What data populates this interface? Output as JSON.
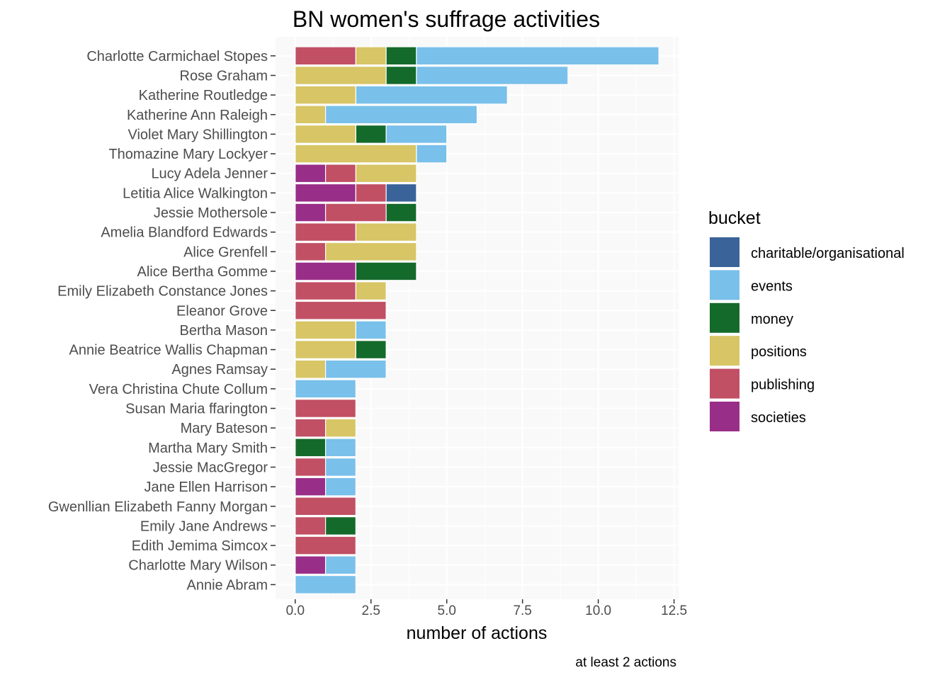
{
  "chart_data": {
    "type": "bar",
    "orientation": "horizontal",
    "stacked": true,
    "title": "BN women's suffrage activities",
    "xlabel": "number of actions",
    "ylabel": "",
    "caption": "at least 2 actions",
    "xlim": [
      0,
      12.5
    ],
    "xticks": [
      0,
      2.5,
      5,
      7.5,
      10,
      12.5
    ],
    "xtick_labels": [
      "0.0",
      "2.5",
      "5.0",
      "7.5",
      "10.0",
      "12.5"
    ],
    "grid": true,
    "legend": {
      "title": "bucket",
      "position": "right"
    },
    "categories": [
      "Charlotte Carmichael Stopes",
      "Rose Graham",
      "Katherine Routledge",
      "Katherine Ann Raleigh",
      "Violet Mary Shillington",
      "Thomazine Mary Lockyer",
      "Lucy Adela Jenner",
      "Letitia Alice Walkington",
      "Jessie Mothersole",
      "Amelia Blandford Edwards",
      "Alice Grenfell",
      "Alice Bertha Gomme",
      "Emily Elizabeth Constance Jones",
      "Eleanor Grove",
      "Bertha Mason",
      "Annie Beatrice Wallis Chapman",
      "Agnes Ramsay",
      "Vera Christina Chute Collum",
      "Susan Maria ffarington",
      "Mary Bateson",
      "Martha Mary Smith",
      "Jessie MacGregor",
      "Jane Ellen Harrison",
      "Gwenllian Elizabeth Fanny Morgan",
      "Emily Jane Andrews",
      "Edith Jemima Simcox",
      "Charlotte Mary Wilson",
      "Annie Abram"
    ],
    "stack_order": [
      "societies",
      "publishing",
      "positions",
      "money",
      "charitable/organisational",
      "events"
    ],
    "series": [
      {
        "name": "charitable/organisational",
        "color": "#3a6399",
        "values": [
          0,
          0,
          0,
          0,
          0,
          0,
          0,
          1,
          0,
          0,
          0,
          0,
          0,
          0,
          0,
          0,
          0,
          0,
          0,
          0,
          0,
          0,
          0,
          0,
          0,
          0,
          0,
          0
        ]
      },
      {
        "name": "events",
        "color": "#79c0ea",
        "values": [
          8,
          5,
          5,
          5,
          2,
          1,
          0,
          0,
          0,
          0,
          0,
          0,
          0,
          0,
          1,
          0,
          2,
          2,
          0,
          0,
          1,
          1,
          1,
          0,
          0,
          0,
          1,
          2
        ]
      },
      {
        "name": "money",
        "color": "#146a2b",
        "values": [
          1,
          1,
          0,
          0,
          1,
          0,
          0,
          0,
          1,
          0,
          0,
          2,
          0,
          0,
          0,
          1,
          0,
          0,
          0,
          0,
          1,
          0,
          0,
          0,
          1,
          0,
          0,
          0
        ]
      },
      {
        "name": "positions",
        "color": "#d7c566",
        "values": [
          1,
          3,
          2,
          1,
          2,
          4,
          2,
          0,
          0,
          2,
          3,
          0,
          1,
          0,
          2,
          2,
          1,
          0,
          0,
          1,
          0,
          0,
          0,
          0,
          0,
          0,
          0,
          0
        ]
      },
      {
        "name": "publishing",
        "color": "#c15065",
        "values": [
          2,
          0,
          0,
          0,
          0,
          0,
          1,
          1,
          2,
          2,
          1,
          0,
          2,
          3,
          0,
          0,
          0,
          0,
          2,
          1,
          0,
          1,
          0,
          2,
          1,
          2,
          0,
          0
        ]
      },
      {
        "name": "societies",
        "color": "#992e88",
        "values": [
          0,
          0,
          0,
          0,
          0,
          0,
          1,
          2,
          1,
          0,
          0,
          2,
          0,
          0,
          0,
          0,
          0,
          0,
          0,
          0,
          0,
          0,
          1,
          0,
          0,
          0,
          1,
          0
        ]
      }
    ]
  },
  "colors": {
    "panel_background": "#f9f9f9",
    "grid": "#ffffff",
    "text": "#4d4d4d"
  }
}
